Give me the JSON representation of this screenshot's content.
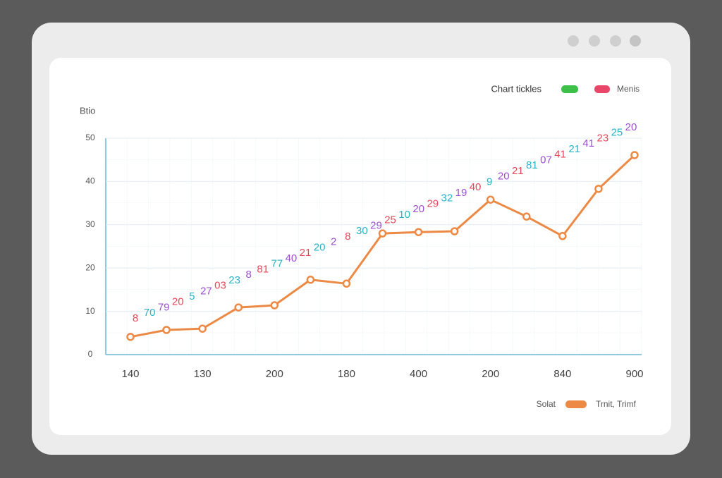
{
  "chart_data": {
    "type": "line",
    "y_label": "Btio",
    "legend_title": "Chart tickles",
    "legend_entries": [
      {
        "name": "",
        "color": "#3cc04a"
      },
      {
        "name": "Menis",
        "color": "#e8476a"
      }
    ],
    "legend_caption": "Solat",
    "categories": [
      "140",
      null,
      "130",
      null,
      "200",
      null,
      "180",
      null,
      "400",
      null,
      "200",
      null,
      "840",
      null,
      "900"
    ],
    "series": [
      {
        "name": "Trnit, Trimf",
        "color": "#ec8a45",
        "values": [
          4.1,
          5.7,
          6.0,
          10.9,
          11.4,
          17.3,
          16.4,
          28.0,
          28.3,
          28.5,
          35.8,
          31.9,
          27.4,
          38.3,
          46.1
        ]
      }
    ],
    "ylim": [
      0,
      50
    ],
    "yticks": [
      0,
      10,
      20,
      30,
      40,
      50
    ],
    "grid": true,
    "annotations": [
      "8",
      "70",
      "79",
      "20",
      "5",
      "27",
      "03",
      "23",
      "8",
      "81",
      "77",
      "40",
      "21",
      "20",
      "2",
      "8",
      "30",
      "29",
      "25",
      "10",
      "20",
      "29",
      "32",
      "19",
      "40",
      "9",
      "20",
      "21",
      "81",
      "07",
      "41",
      "21",
      "41",
      "23",
      "25",
      "20"
    ]
  }
}
